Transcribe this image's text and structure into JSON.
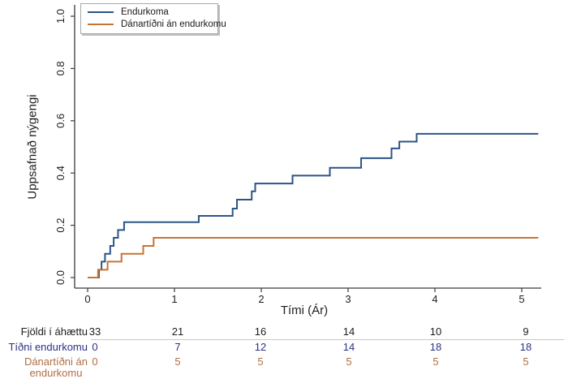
{
  "chart_data": {
    "type": "line",
    "subtype": "step-cumulative-incidence",
    "title": "",
    "xlabel": "Tími (Ár)",
    "ylabel": "Uppsafnað nýgengi",
    "xlim": [
      0,
      5.2
    ],
    "ylim": [
      0,
      1.0
    ],
    "x_ticks": [
      0,
      1,
      2,
      3,
      4,
      5
    ],
    "y_ticks": [
      0.0,
      0.2,
      0.4,
      0.6,
      0.8,
      1.0
    ],
    "x_end": 5.19,
    "grid": "off",
    "legend_position": "top-left",
    "series": [
      {
        "name": "Endurkoma",
        "color": "#2b5585",
        "steps": [
          [
            0.0,
            0.0
          ],
          [
            0.13,
            0.03
          ],
          [
            0.16,
            0.061
          ],
          [
            0.2,
            0.091
          ],
          [
            0.26,
            0.121
          ],
          [
            0.3,
            0.152
          ],
          [
            0.35,
            0.182
          ],
          [
            0.42,
            0.212
          ],
          [
            1.28,
            0.236
          ],
          [
            1.67,
            0.264
          ],
          [
            1.72,
            0.298
          ],
          [
            1.89,
            0.33
          ],
          [
            1.93,
            0.36
          ],
          [
            2.36,
            0.39
          ],
          [
            2.79,
            0.42
          ],
          [
            3.15,
            0.457
          ],
          [
            3.5,
            0.494
          ],
          [
            3.59,
            0.52
          ],
          [
            3.79,
            0.55
          ]
        ]
      },
      {
        "name": "Dánartíðni án endurkomu",
        "color": "#c67434",
        "steps": [
          [
            0.0,
            0.0
          ],
          [
            0.12,
            0.03
          ],
          [
            0.23,
            0.061
          ],
          [
            0.39,
            0.091
          ],
          [
            0.64,
            0.121
          ],
          [
            0.76,
            0.152
          ]
        ]
      }
    ]
  },
  "risk_table": {
    "time_points": [
      0,
      1,
      2,
      3,
      4,
      5
    ],
    "rows": [
      {
        "label_lines": [
          "Fjöldi í áhættu"
        ],
        "color": "#1c1c1c",
        "values": [
          "33",
          "21",
          "16",
          "14",
          "10",
          "9"
        ]
      },
      {
        "label_lines": [
          "Tíðni endurkomu"
        ],
        "color": "#2d3183",
        "values": [
          "0",
          "7",
          "12",
          "14",
          "18",
          "18"
        ]
      },
      {
        "label_lines": [
          "Dánartíðni án",
          "endurkomu"
        ],
        "color": "#b06e42",
        "values": [
          "0",
          "5",
          "5",
          "5",
          "5",
          "5"
        ]
      }
    ]
  }
}
